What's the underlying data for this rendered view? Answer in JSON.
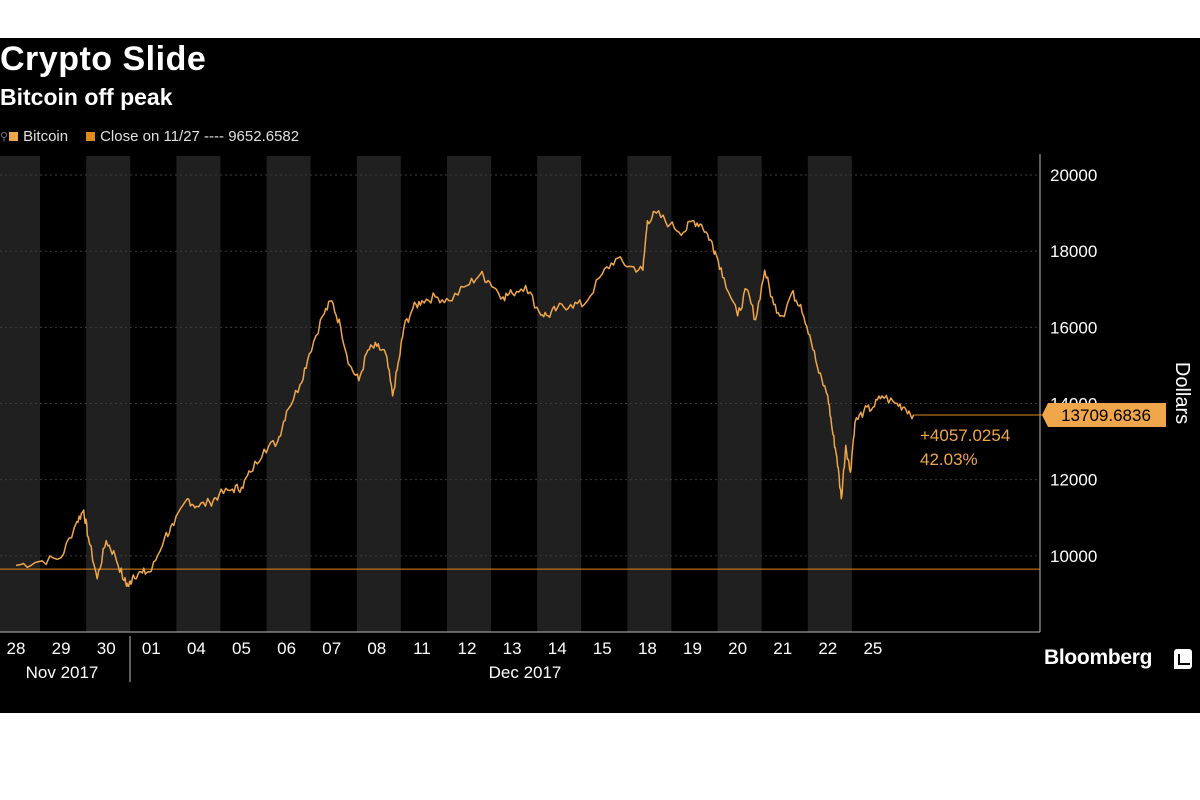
{
  "page": {
    "title": "Crypto Slide",
    "subtitle": "Bitcoin off peak",
    "brand": "Bloomberg"
  },
  "legend": [
    {
      "label": "Bitcoin",
      "color": "#f0a64a"
    },
    {
      "label": "Close on 11/27 ---- 9652.6582",
      "color": "#e08a1e"
    }
  ],
  "chart_data": {
    "type": "line",
    "title": "Crypto Slide",
    "subtitle": "Bitcoin off peak",
    "ylabel": "Dollars",
    "ylim": [
      8000,
      20500
    ],
    "yticks": [
      "20000",
      "18000",
      "16000",
      "14000",
      "12000",
      "10000"
    ],
    "x_day_labels": [
      "28",
      "29",
      "30",
      "01",
      "04",
      "05",
      "06",
      "07",
      "08",
      "11",
      "12",
      "13",
      "14",
      "15",
      "18",
      "19",
      "20",
      "21",
      "22",
      "25"
    ],
    "x_month_labels": [
      "Nov 2017",
      "Dec 2017"
    ],
    "reference_value": 9652.6582,
    "last_value_label": "13709.6836",
    "change_label": "+4057.0254",
    "change_pct_label": "42.03%",
    "series": [
      {
        "name": "Bitcoin",
        "color": "#f0a64a",
        "x": [
          0,
          0.5,
          1.0,
          1.35,
          1.5,
          1.6,
          1.8,
          2.0,
          2.2,
          2.4,
          2.5,
          2.6,
          2.8,
          3.0,
          3.3,
          3.5,
          3.8,
          4.0,
          4.3,
          4.5,
          4.8,
          5.0,
          5.2,
          5.5,
          5.8,
          6.0,
          6.3,
          6.5,
          6.8,
          7.0,
          7.2,
          7.4,
          7.6,
          7.8,
          8.0,
          8.2,
          8.35,
          8.5,
          8.6,
          8.8,
          9.0,
          9.3,
          9.6,
          10.0,
          10.3,
          10.5,
          10.8,
          11.0,
          11.3,
          11.6,
          11.8,
          12.0,
          12.3,
          12.6,
          13.0,
          13.3,
          13.6,
          13.9,
          14.0,
          14.2,
          14.5,
          14.8,
          15.0,
          15.2,
          15.4,
          15.5,
          15.7,
          16.0,
          16.2,
          16.4,
          16.6,
          16.8,
          17.0,
          17.2,
          17.4,
          17.6,
          17.8,
          18.0,
          18.1,
          18.2,
          18.3,
          18.4,
          18.5,
          18.6,
          18.8,
          19.0,
          19.2,
          19.5,
          19.7,
          19.9
        ],
        "values": [
          9750,
          9850,
          9950,
          10900,
          11200,
          10500,
          9400,
          10400,
          10000,
          9350,
          9200,
          9500,
          9550,
          9600,
          10500,
          10800,
          11500,
          11300,
          11400,
          11600,
          11750,
          11800,
          12200,
          12800,
          13000,
          13800,
          14500,
          15300,
          16300,
          16700,
          16000,
          15000,
          14600,
          15400,
          15500,
          15300,
          14200,
          15200,
          16000,
          16500,
          16700,
          16800,
          16700,
          17100,
          17400,
          17200,
          16800,
          16900,
          17100,
          16400,
          16300,
          16500,
          16600,
          16600,
          17400,
          17800,
          17600,
          17500,
          18800,
          19000,
          18700,
          18500,
          18800,
          18700,
          18300,
          18000,
          17300,
          16300,
          17000,
          16200,
          17500,
          16600,
          16300,
          16900,
          16600,
          15800,
          14800,
          14200,
          13300,
          12600,
          11500,
          12900,
          12200,
          13500,
          13800,
          13900,
          14200,
          14000,
          13900,
          13700
        ]
      }
    ]
  }
}
